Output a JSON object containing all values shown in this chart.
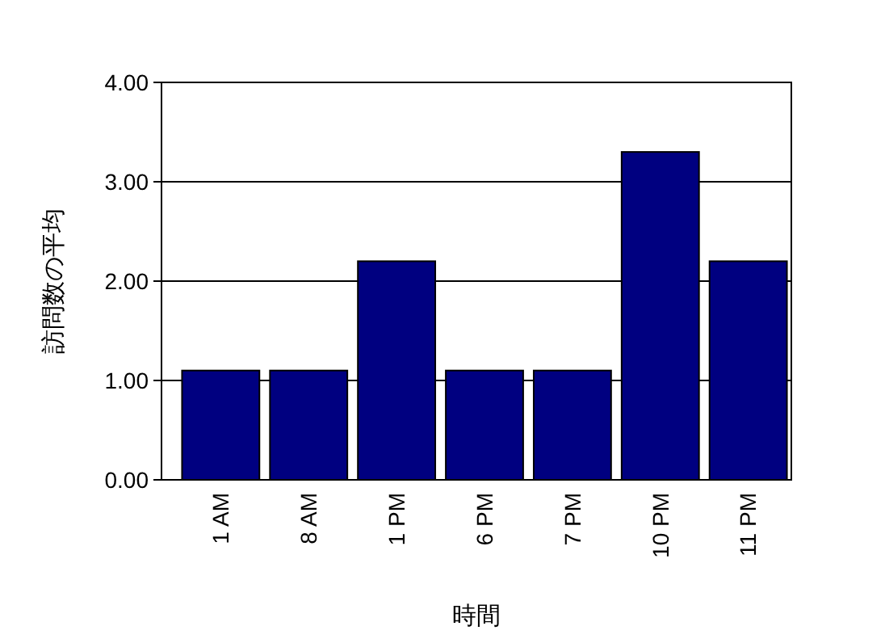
{
  "chart_data": {
    "type": "bar",
    "xlabel": "時間",
    "ylabel": "訪問数の平均",
    "categories": [
      "1 AM",
      "8 AM",
      "1 PM",
      "6 PM",
      "7 PM",
      "10 PM",
      "11 PM"
    ],
    "values": [
      1.1,
      1.1,
      2.2,
      1.1,
      1.1,
      3.3,
      2.2
    ],
    "color": "#000080",
    "ylim": [
      0,
      4
    ],
    "yticks": [
      {
        "value": 0,
        "label": "0.00"
      },
      {
        "value": 1,
        "label": "1.00"
      },
      {
        "value": 2,
        "label": "2.00"
      },
      {
        "value": 3,
        "label": "3.00"
      },
      {
        "value": 4,
        "label": "4.00"
      }
    ],
    "grid": "y"
  }
}
